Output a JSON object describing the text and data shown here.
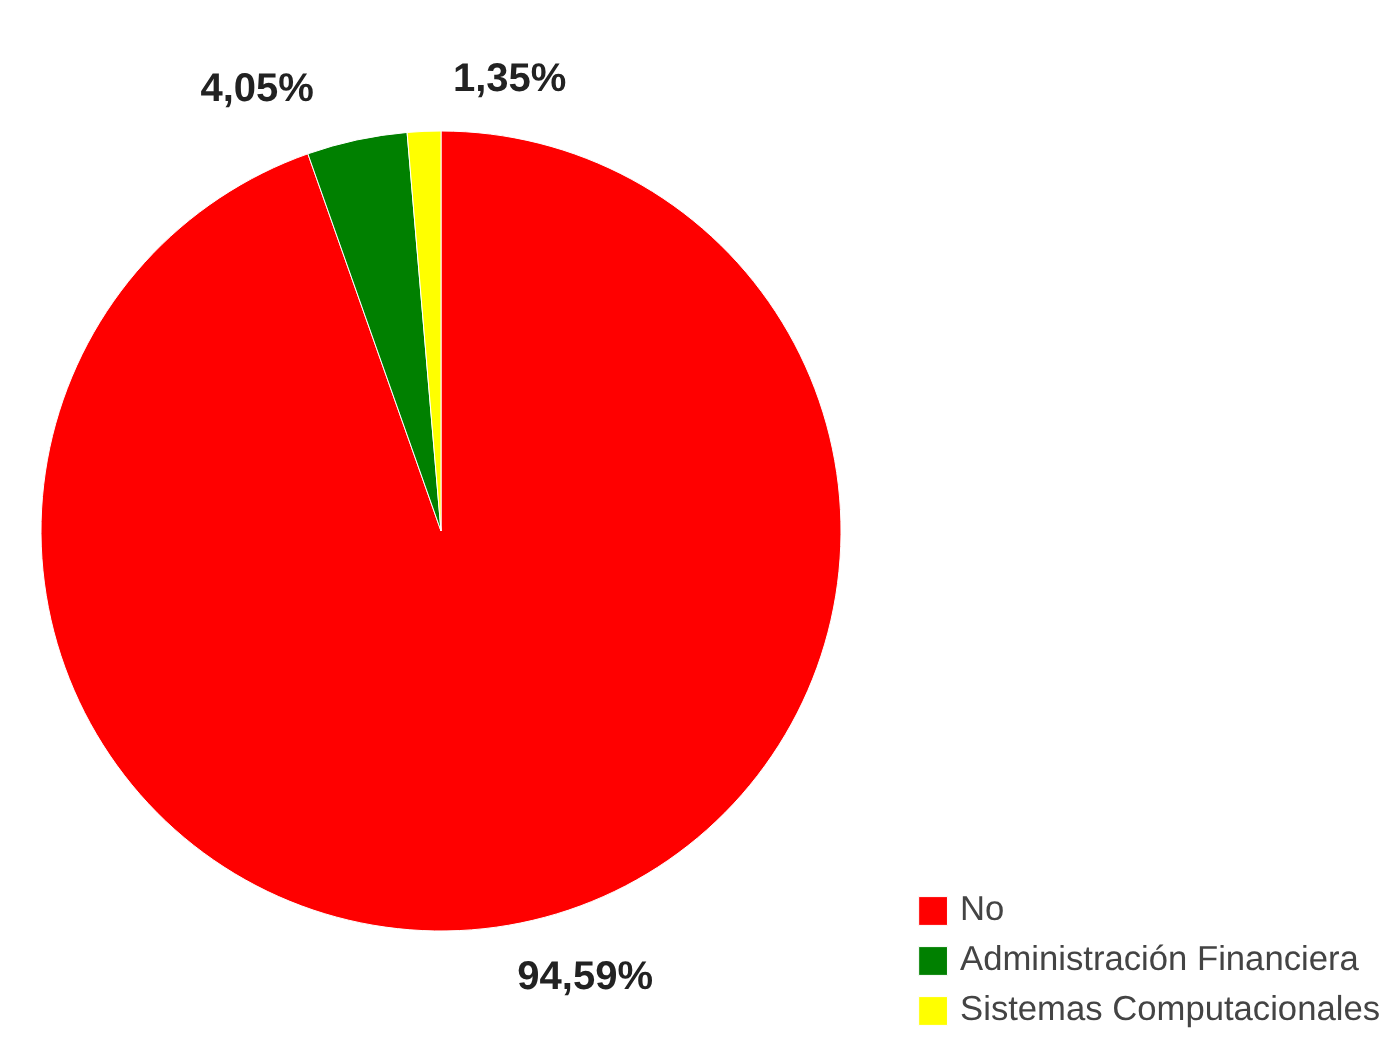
{
  "chart_data": {
    "type": "pie",
    "categories": [
      "No",
      "Administración Financiera",
      "Sistemas Computacionales"
    ],
    "values": [
      94.59,
      4.05,
      1.35
    ],
    "colors": [
      "#ff0000",
      "#008000",
      "#ffff00"
    ],
    "value_labels": [
      "94,59%",
      "4,05%",
      "1,35%"
    ],
    "legend": "bottom right"
  }
}
